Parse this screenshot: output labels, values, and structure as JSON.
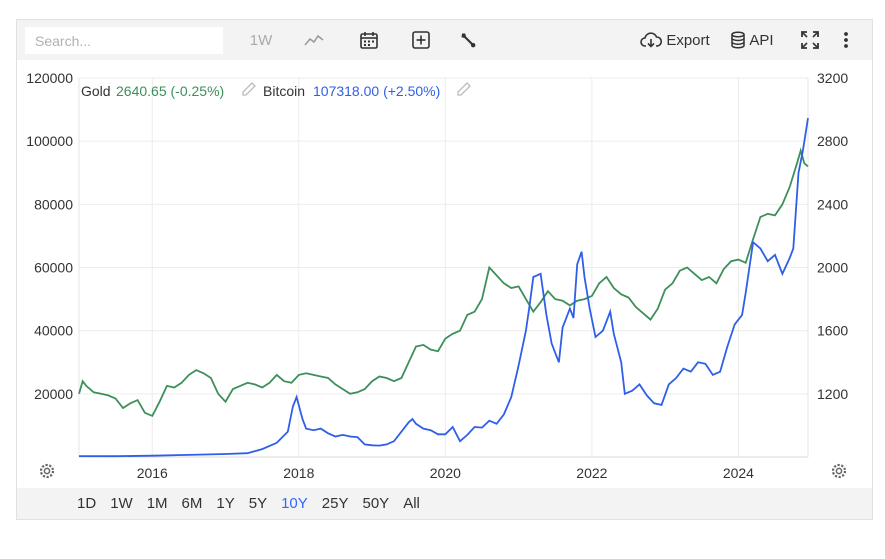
{
  "toolbar": {
    "search_placeholder": "Search...",
    "interval_label": "1W",
    "export_label": "Export",
    "api_label": "API",
    "icons": [
      "line-chart-icon",
      "calendar-icon",
      "add-indicator-icon",
      "wrench-icon",
      "cloud-download-icon",
      "database-icon",
      "fullscreen-icon",
      "more-vert-icon"
    ]
  },
  "legend": {
    "gold_name": "Gold",
    "gold_value": "2640.65 (-0.25%)",
    "btc_name": "Bitcoin",
    "btc_value": "107318.00 (+2.50%)"
  },
  "range_buttons": [
    "1D",
    "1W",
    "1M",
    "6M",
    "1Y",
    "5Y",
    "10Y",
    "25Y",
    "50Y",
    "All"
  ],
  "active_range": "10Y",
  "colors": {
    "gold": "#3d8f5a",
    "bitcoin": "#2f5fe8",
    "active": "#3366ff"
  },
  "chart_data": {
    "type": "line",
    "x_ticks": [
      "2016",
      "2018",
      "2020",
      "2022",
      "2024"
    ],
    "y_left_ticks": [
      "20000",
      "40000",
      "60000",
      "80000",
      "100000",
      "120000"
    ],
    "y_right_ticks": [
      "1200",
      "1600",
      "2000",
      "2400",
      "2800",
      "3200"
    ],
    "y_left_range": [
      0,
      120000
    ],
    "y_right_range": [
      800,
      3200
    ],
    "x_range": [
      2015.0,
      2024.95
    ],
    "grid": true,
    "series": [
      {
        "name": "Gold",
        "axis": "right",
        "points": [
          [
            2015.0,
            1200
          ],
          [
            2015.05,
            1280
          ],
          [
            2015.1,
            1250
          ],
          [
            2015.2,
            1210
          ],
          [
            2015.3,
            1200
          ],
          [
            2015.4,
            1190
          ],
          [
            2015.5,
            1170
          ],
          [
            2015.6,
            1110
          ],
          [
            2015.7,
            1140
          ],
          [
            2015.8,
            1160
          ],
          [
            2015.9,
            1080
          ],
          [
            2016.0,
            1060
          ],
          [
            2016.1,
            1150
          ],
          [
            2016.2,
            1250
          ],
          [
            2016.3,
            1240
          ],
          [
            2016.4,
            1270
          ],
          [
            2016.5,
            1320
          ],
          [
            2016.6,
            1350
          ],
          [
            2016.7,
            1330
          ],
          [
            2016.8,
            1300
          ],
          [
            2016.9,
            1200
          ],
          [
            2017.0,
            1150
          ],
          [
            2017.1,
            1230
          ],
          [
            2017.2,
            1250
          ],
          [
            2017.3,
            1270
          ],
          [
            2017.4,
            1260
          ],
          [
            2017.5,
            1240
          ],
          [
            2017.6,
            1270
          ],
          [
            2017.7,
            1320
          ],
          [
            2017.8,
            1280
          ],
          [
            2017.9,
            1270
          ],
          [
            2018.0,
            1320
          ],
          [
            2018.1,
            1330
          ],
          [
            2018.2,
            1320
          ],
          [
            2018.3,
            1310
          ],
          [
            2018.4,
            1300
          ],
          [
            2018.5,
            1260
          ],
          [
            2018.6,
            1230
          ],
          [
            2018.7,
            1200
          ],
          [
            2018.8,
            1210
          ],
          [
            2018.9,
            1230
          ],
          [
            2019.0,
            1280
          ],
          [
            2019.1,
            1310
          ],
          [
            2019.2,
            1300
          ],
          [
            2019.3,
            1280
          ],
          [
            2019.4,
            1300
          ],
          [
            2019.5,
            1400
          ],
          [
            2019.6,
            1500
          ],
          [
            2019.7,
            1510
          ],
          [
            2019.8,
            1480
          ],
          [
            2019.9,
            1470
          ],
          [
            2020.0,
            1550
          ],
          [
            2020.1,
            1580
          ],
          [
            2020.2,
            1600
          ],
          [
            2020.3,
            1700
          ],
          [
            2020.4,
            1720
          ],
          [
            2020.5,
            1800
          ],
          [
            2020.6,
            2000
          ],
          [
            2020.7,
            1950
          ],
          [
            2020.8,
            1900
          ],
          [
            2020.9,
            1870
          ],
          [
            2021.0,
            1880
          ],
          [
            2021.1,
            1800
          ],
          [
            2021.2,
            1720
          ],
          [
            2021.3,
            1780
          ],
          [
            2021.4,
            1850
          ],
          [
            2021.5,
            1800
          ],
          [
            2021.6,
            1790
          ],
          [
            2021.7,
            1760
          ],
          [
            2021.8,
            1790
          ],
          [
            2021.9,
            1800
          ],
          [
            2022.0,
            1820
          ],
          [
            2022.1,
            1900
          ],
          [
            2022.2,
            1940
          ],
          [
            2022.3,
            1870
          ],
          [
            2022.4,
            1830
          ],
          [
            2022.5,
            1810
          ],
          [
            2022.6,
            1750
          ],
          [
            2022.7,
            1710
          ],
          [
            2022.8,
            1670
          ],
          [
            2022.9,
            1740
          ],
          [
            2023.0,
            1860
          ],
          [
            2023.1,
            1900
          ],
          [
            2023.2,
            1980
          ],
          [
            2023.3,
            2000
          ],
          [
            2023.4,
            1960
          ],
          [
            2023.5,
            1920
          ],
          [
            2023.6,
            1940
          ],
          [
            2023.7,
            1900
          ],
          [
            2023.8,
            1990
          ],
          [
            2023.9,
            2040
          ],
          [
            2024.0,
            2050
          ],
          [
            2024.1,
            2030
          ],
          [
            2024.2,
            2180
          ],
          [
            2024.3,
            2320
          ],
          [
            2024.4,
            2340
          ],
          [
            2024.5,
            2330
          ],
          [
            2024.6,
            2400
          ],
          [
            2024.7,
            2510
          ],
          [
            2024.8,
            2660
          ],
          [
            2024.85,
            2740
          ],
          [
            2024.9,
            2660
          ],
          [
            2024.95,
            2640
          ]
        ]
      },
      {
        "name": "Bitcoin",
        "axis": "left",
        "points": [
          [
            2015.0,
            300
          ],
          [
            2015.5,
            260
          ],
          [
            2016.0,
            420
          ],
          [
            2016.5,
            650
          ],
          [
            2017.0,
            960
          ],
          [
            2017.3,
            1200
          ],
          [
            2017.5,
            2500
          ],
          [
            2017.7,
            4500
          ],
          [
            2017.85,
            8000
          ],
          [
            2017.92,
            16000
          ],
          [
            2017.97,
            19000
          ],
          [
            2018.05,
            12000
          ],
          [
            2018.1,
            9000
          ],
          [
            2018.2,
            8500
          ],
          [
            2018.3,
            9000
          ],
          [
            2018.4,
            7500
          ],
          [
            2018.5,
            6500
          ],
          [
            2018.6,
            7000
          ],
          [
            2018.7,
            6500
          ],
          [
            2018.8,
            6300
          ],
          [
            2018.9,
            4000
          ],
          [
            2019.0,
            3700
          ],
          [
            2019.1,
            3600
          ],
          [
            2019.2,
            4000
          ],
          [
            2019.3,
            5000
          ],
          [
            2019.4,
            8000
          ],
          [
            2019.5,
            11000
          ],
          [
            2019.55,
            12000
          ],
          [
            2019.6,
            10500
          ],
          [
            2019.7,
            9000
          ],
          [
            2019.8,
            8500
          ],
          [
            2019.9,
            7200
          ],
          [
            2020.0,
            7200
          ],
          [
            2020.1,
            9500
          ],
          [
            2020.2,
            5000
          ],
          [
            2020.3,
            7000
          ],
          [
            2020.4,
            9500
          ],
          [
            2020.5,
            9300
          ],
          [
            2020.6,
            11500
          ],
          [
            2020.7,
            10500
          ],
          [
            2020.8,
            13500
          ],
          [
            2020.9,
            19000
          ],
          [
            2021.0,
            29000
          ],
          [
            2021.1,
            40000
          ],
          [
            2021.15,
            48000
          ],
          [
            2021.2,
            57000
          ],
          [
            2021.3,
            58000
          ],
          [
            2021.38,
            45000
          ],
          [
            2021.45,
            36000
          ],
          [
            2021.5,
            33000
          ],
          [
            2021.55,
            30000
          ],
          [
            2021.6,
            41000
          ],
          [
            2021.7,
            47000
          ],
          [
            2021.75,
            44000
          ],
          [
            2021.8,
            61000
          ],
          [
            2021.86,
            65000
          ],
          [
            2021.9,
            57000
          ],
          [
            2021.97,
            47000
          ],
          [
            2022.05,
            38000
          ],
          [
            2022.15,
            40000
          ],
          [
            2022.25,
            46000
          ],
          [
            2022.3,
            39000
          ],
          [
            2022.4,
            30000
          ],
          [
            2022.45,
            20000
          ],
          [
            2022.55,
            21000
          ],
          [
            2022.65,
            23000
          ],
          [
            2022.75,
            19500
          ],
          [
            2022.85,
            17000
          ],
          [
            2022.95,
            16500
          ],
          [
            2023.05,
            23000
          ],
          [
            2023.15,
            25000
          ],
          [
            2023.25,
            28000
          ],
          [
            2023.35,
            27000
          ],
          [
            2023.45,
            30000
          ],
          [
            2023.55,
            29500
          ],
          [
            2023.65,
            26000
          ],
          [
            2023.75,
            27000
          ],
          [
            2023.85,
            35000
          ],
          [
            2023.95,
            42000
          ],
          [
            2024.05,
            45000
          ],
          [
            2024.1,
            52000
          ],
          [
            2024.2,
            68000
          ],
          [
            2024.3,
            66000
          ],
          [
            2024.4,
            62000
          ],
          [
            2024.5,
            64000
          ],
          [
            2024.6,
            58000
          ],
          [
            2024.7,
            63000
          ],
          [
            2024.75,
            66000
          ],
          [
            2024.82,
            90000
          ],
          [
            2024.88,
            97000
          ],
          [
            2024.95,
            107318
          ]
        ]
      }
    ]
  }
}
